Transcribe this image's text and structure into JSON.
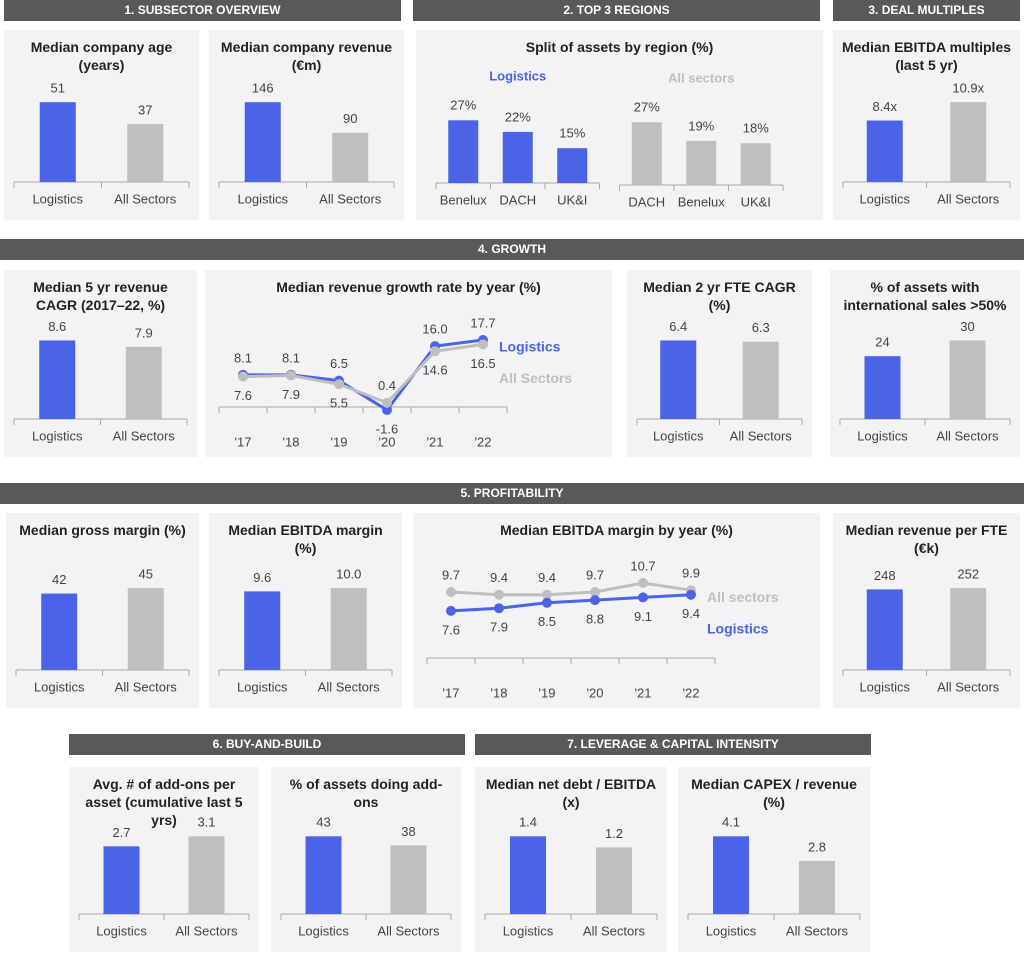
{
  "sections": [
    "1. SUBSECTOR OVERVIEW",
    "2. TOP 3 REGIONS",
    "3. DEAL MULTIPLES",
    "4. GROWTH",
    "5.  PROFITABILITY",
    "6. BUY-AND-BUILD",
    "7. LEVERAGE & CAPITAL INTENSITY"
  ],
  "chart_data": [
    {
      "type": "bar",
      "title": "Median company age (years)",
      "categories": [
        "Logistics",
        "All Sectors"
      ],
      "values": [
        51,
        37
      ],
      "colors": [
        "#4a63e7",
        "#bfbfbf"
      ]
    },
    {
      "type": "bar",
      "title": "Median company revenue (€m)",
      "categories": [
        "Logistics",
        "All Sectors"
      ],
      "values": [
        146,
        90
      ],
      "colors": [
        "#4a63e7",
        "#bfbfbf"
      ]
    },
    {
      "type": "panels",
      "title": "Split of assets by region (%)",
      "panels": [
        {
          "name": "Logistics",
          "color": "#4a63e7",
          "categories": [
            "Benelux",
            "DACH",
            "UK&I"
          ],
          "values": [
            27,
            22,
            15
          ],
          "value_labels": [
            "27%",
            "22%",
            "15%"
          ]
        },
        {
          "name": "All sectors",
          "color": "#bfbfbf",
          "categories": [
            "DACH",
            "Benelux",
            "UK&I"
          ],
          "values": [
            27,
            19,
            18
          ],
          "value_labels": [
            "27%",
            "19%",
            "18%"
          ]
        }
      ]
    },
    {
      "type": "bar",
      "title": "Median EBITDA multiples (last 5 yr)",
      "categories": [
        "Logistics",
        "All Sectors"
      ],
      "values": [
        8.4,
        10.9
      ],
      "value_labels": [
        "8.4x",
        "10.9x"
      ],
      "colors": [
        "#4a63e7",
        "#bfbfbf"
      ]
    },
    {
      "type": "bar",
      "title": "Median 5 yr revenue CAGR (2017–22, %)",
      "categories": [
        "Logistics",
        "All Sectors"
      ],
      "values": [
        8.6,
        7.9
      ],
      "colors": [
        "#4a63e7",
        "#bfbfbf"
      ]
    },
    {
      "type": "line",
      "title": "Median revenue growth rate by year (%)",
      "categories": [
        "'17",
        "'18",
        "'19",
        "'20",
        "'21",
        "'22"
      ],
      "series": [
        {
          "name": "Logistics",
          "color": "#4a63e7",
          "values": [
            8.1,
            8.1,
            6.5,
            -1.6,
            16.0,
            17.7
          ],
          "value_labels": [
            "8.1",
            "8.1",
            "6.5",
            "-1.6",
            "16.0",
            "17.7"
          ]
        },
        {
          "name": "All Sectors",
          "color": "#bfbfbf",
          "values": [
            7.6,
            7.9,
            5.5,
            0.4,
            14.6,
            16.5
          ]
        }
      ]
    },
    {
      "type": "bar",
      "title": "Median 2 yr FTE CAGR (%)",
      "categories": [
        "Logistics",
        "All Sectors"
      ],
      "values": [
        6.4,
        6.3
      ],
      "colors": [
        "#4a63e7",
        "#bfbfbf"
      ]
    },
    {
      "type": "bar",
      "title": "% of assets with international sales >50%",
      "categories": [
        "Logistics",
        "All Sectors"
      ],
      "values": [
        24,
        30
      ],
      "colors": [
        "#4a63e7",
        "#bfbfbf"
      ]
    },
    {
      "type": "bar",
      "title": "Median gross margin (%)",
      "categories": [
        "Logistics",
        "All Sectors"
      ],
      "values": [
        42,
        45
      ],
      "colors": [
        "#4a63e7",
        "#bfbfbf"
      ]
    },
    {
      "type": "bar",
      "title": "Median EBITDA margin (%)",
      "categories": [
        "Logistics",
        "All Sectors"
      ],
      "values": [
        9.6,
        10.0
      ],
      "value_labels": [
        "9.6",
        "10.0"
      ],
      "colors": [
        "#4a63e7",
        "#bfbfbf"
      ]
    },
    {
      "type": "line",
      "title": "Median EBITDA margin by year (%)",
      "categories": [
        "'17",
        "'18",
        "'19",
        "'20",
        "'21",
        "'22"
      ],
      "series": [
        {
          "name": "All sectors",
          "color": "#bfbfbf",
          "values": [
            9.7,
            9.4,
            9.4,
            9.7,
            10.7,
            9.9
          ]
        },
        {
          "name": "Logistics",
          "color": "#4a63e7",
          "values": [
            7.6,
            7.9,
            8.5,
            8.8,
            9.1,
            9.4
          ]
        }
      ]
    },
    {
      "type": "bar",
      "title": "Median revenue per FTE (€k)",
      "categories": [
        "Logistics",
        "All Sectors"
      ],
      "values": [
        248,
        252
      ],
      "colors": [
        "#4a63e7",
        "#bfbfbf"
      ]
    },
    {
      "type": "bar",
      "title": "Avg. # of add-ons per asset (cumulative last 5 yrs)",
      "categories": [
        "Logistics",
        "All Sectors"
      ],
      "values": [
        2.7,
        3.1
      ],
      "colors": [
        "#4a63e7",
        "#bfbfbf"
      ]
    },
    {
      "type": "bar",
      "title": "% of assets doing add-ons",
      "categories": [
        "Logistics",
        "All Sectors"
      ],
      "values": [
        43,
        38
      ],
      "colors": [
        "#4a63e7",
        "#bfbfbf"
      ]
    },
    {
      "type": "bar",
      "title": "Median net debt / EBITDA (x)",
      "categories": [
        "Logistics",
        "All Sectors"
      ],
      "values": [
        1.4,
        1.2
      ],
      "colors": [
        "#4a63e7",
        "#bfbfbf"
      ]
    },
    {
      "type": "bar",
      "title": "Median CAPEX / revenue (%)",
      "categories": [
        "Logistics",
        "All Sectors"
      ],
      "values": [
        4.1,
        2.8
      ],
      "colors": [
        "#4a63e7",
        "#bfbfbf"
      ]
    }
  ]
}
